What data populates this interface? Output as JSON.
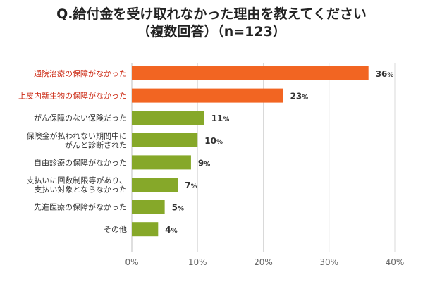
{
  "title": {
    "line1": "Q.給付金を受け取れなかった理由を教えてください",
    "line2": "（複数回答）（n=123）"
  },
  "colors": {
    "highlight_bar": "#f26522",
    "normal_bar": "#86a829",
    "highlight_label": "#cc2a14",
    "grid": "#d9d9d9"
  },
  "chart_data": {
    "type": "bar",
    "orientation": "horizontal",
    "categories": [
      [
        "通院治療の保障がなかった"
      ],
      [
        "上皮内新生物の保障がなかった"
      ],
      [
        "がん保障のない保険だった"
      ],
      [
        "保険金が払われない期間中に",
        "がんと診断された"
      ],
      [
        "自由診療の保障がなかった"
      ],
      [
        "支払いに回数制限等があり、",
        "支払い対象とならなかった"
      ],
      [
        "先進医療の保障がなかった"
      ],
      [
        "その他"
      ]
    ],
    "values": [
      36,
      23,
      11,
      10,
      9,
      7,
      5,
      4
    ],
    "highlighted": [
      true,
      true,
      false,
      false,
      false,
      false,
      false,
      false
    ],
    "value_suffix": "%",
    "xlim": [
      0,
      40
    ],
    "xticks": [
      0,
      10,
      20,
      30,
      40
    ],
    "tick_labels": [
      "0%",
      "10%",
      "20%",
      "30%",
      "40%"
    ],
    "grid": true
  }
}
